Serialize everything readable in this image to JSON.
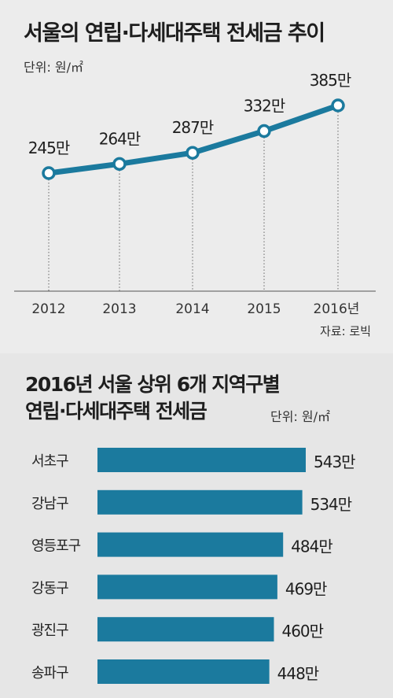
{
  "chart_data": [
    {
      "type": "line",
      "title": "서울의 연립·다세대주택 전세금 추이",
      "unit": "단위: 원/㎡",
      "x": [
        "2012",
        "2013",
        "2014",
        "2015",
        "2016년"
      ],
      "values": [
        245,
        264,
        287,
        332,
        385
      ],
      "value_labels": [
        "245만",
        "264만",
        "287만",
        "332만",
        "385만"
      ],
      "source": "자료: 로빅",
      "colors": {
        "line": "#1b7a9e",
        "marker_fill": "#ffffff"
      }
    },
    {
      "type": "bar",
      "title_line1": "2016년 서울 상위 6개 지역구별",
      "title_line2": "연립·다세대주택 전세금",
      "unit": "단위: 원/㎡",
      "categories": [
        "서초구",
        "강남구",
        "영등포구",
        "강동구",
        "광진구",
        "송파구"
      ],
      "values": [
        543,
        534,
        484,
        469,
        460,
        448
      ],
      "value_labels": [
        "543만",
        "534만",
        "484만",
        "469만",
        "460만",
        "448만"
      ],
      "colors": {
        "bar": "#1b7a9e"
      }
    }
  ]
}
